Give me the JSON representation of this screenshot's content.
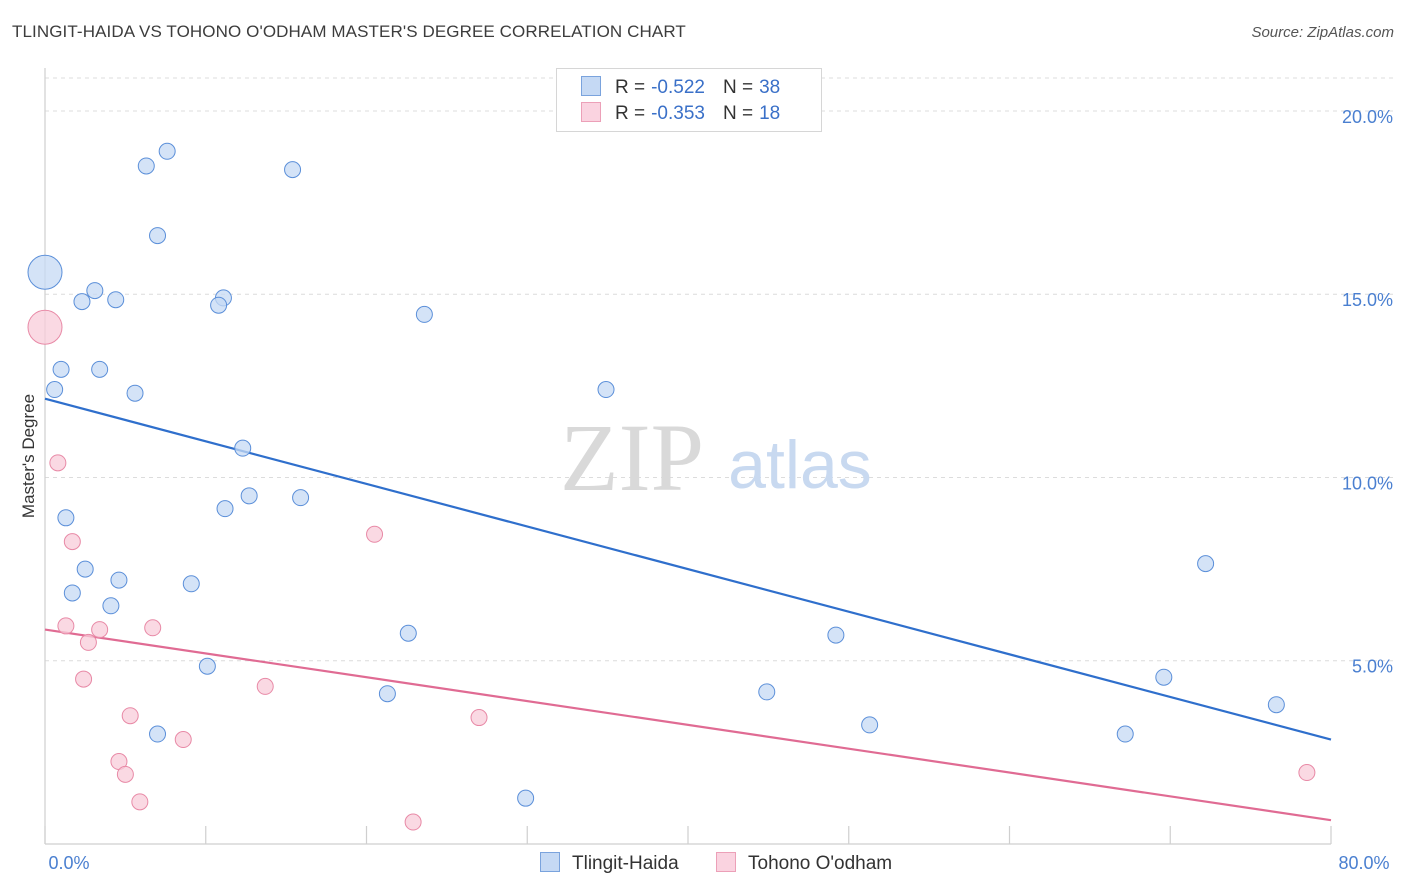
{
  "header": {
    "title": "TLINGIT-HAIDA VS TOHONO O'ODHAM MASTER'S DEGREE CORRELATION CHART",
    "source": "Source: ZipAtlas.com"
  },
  "legend": {
    "rows": [
      {
        "r_label": "R =",
        "r_value": "-0.522",
        "n_label": "N =",
        "n_value": "38",
        "color": "#a9c6ef"
      },
      {
        "r_label": "R =",
        "r_value": "-0.353",
        "n_label": "N =",
        "n_value": "18",
        "color": "#f5b8ca"
      }
    ]
  },
  "bottom_legend": [
    {
      "label": "Tlingit-Haida",
      "color": "#a9c6ef"
    },
    {
      "label": "Tohono O'odham",
      "color": "#f5b8ca"
    }
  ],
  "watermark": {
    "zip": "ZIP",
    "atlas": "atlas"
  },
  "chart_data": {
    "type": "scatter",
    "ylabel": "Master's Degree",
    "xlabel": "",
    "x_tick_labels": [
      "0.0%",
      "80.0%"
    ],
    "y_tick_labels": [
      "5.0%",
      "10.0%",
      "15.0%",
      "20.0%"
    ],
    "y_ticks": [
      5,
      10,
      15,
      20
    ],
    "xlim": [
      0,
      80
    ],
    "ylim": [
      0,
      20.9
    ],
    "grid": true,
    "series": [
      {
        "name": "Tlingit-Haida",
        "color": "#5b8fd9",
        "fill": "#c5d9f4",
        "trend": {
          "x": [
            0,
            80
          ],
          "y": [
            12.15,
            2.85
          ],
          "color": "#2f6fcc"
        },
        "points": [
          {
            "x": 0.0,
            "y": 15.6,
            "big": true
          },
          {
            "x": 6.3,
            "y": 18.5
          },
          {
            "x": 7.6,
            "y": 18.9
          },
          {
            "x": 15.4,
            "y": 18.4
          },
          {
            "x": 7.0,
            "y": 16.6
          },
          {
            "x": 3.1,
            "y": 15.1
          },
          {
            "x": 2.3,
            "y": 14.8
          },
          {
            "x": 4.4,
            "y": 14.85
          },
          {
            "x": 11.1,
            "y": 14.9
          },
          {
            "x": 10.8,
            "y": 14.7
          },
          {
            "x": 23.6,
            "y": 14.45
          },
          {
            "x": 1.0,
            "y": 12.95
          },
          {
            "x": 3.4,
            "y": 12.95
          },
          {
            "x": 0.6,
            "y": 12.4
          },
          {
            "x": 5.6,
            "y": 12.3
          },
          {
            "x": 34.9,
            "y": 12.4
          },
          {
            "x": 12.3,
            "y": 10.8
          },
          {
            "x": 12.7,
            "y": 9.5
          },
          {
            "x": 11.2,
            "y": 9.15
          },
          {
            "x": 15.9,
            "y": 9.45
          },
          {
            "x": 1.3,
            "y": 8.9
          },
          {
            "x": 2.5,
            "y": 7.5
          },
          {
            "x": 4.6,
            "y": 7.2
          },
          {
            "x": 9.1,
            "y": 7.1
          },
          {
            "x": 1.7,
            "y": 6.85
          },
          {
            "x": 4.1,
            "y": 6.5
          },
          {
            "x": 22.6,
            "y": 5.75
          },
          {
            "x": 49.2,
            "y": 5.7
          },
          {
            "x": 72.2,
            "y": 7.65
          },
          {
            "x": 10.1,
            "y": 4.85
          },
          {
            "x": 21.3,
            "y": 4.1
          },
          {
            "x": 44.9,
            "y": 4.15
          },
          {
            "x": 69.6,
            "y": 4.55
          },
          {
            "x": 76.6,
            "y": 3.8
          },
          {
            "x": 7.0,
            "y": 3.0
          },
          {
            "x": 51.3,
            "y": 3.25
          },
          {
            "x": 67.2,
            "y": 3.0
          },
          {
            "x": 29.9,
            "y": 1.25
          }
        ]
      },
      {
        "name": "Tohono O'odham",
        "color": "#e889a6",
        "fill": "#f8ccda",
        "trend": {
          "x": [
            0,
            80
          ],
          "y": [
            5.85,
            0.65
          ],
          "color": "#e06b93"
        },
        "points": [
          {
            "x": 0.0,
            "y": 14.1,
            "big": true
          },
          {
            "x": 0.8,
            "y": 10.4
          },
          {
            "x": 1.7,
            "y": 8.25
          },
          {
            "x": 20.5,
            "y": 8.45
          },
          {
            "x": 1.3,
            "y": 5.95
          },
          {
            "x": 2.7,
            "y": 5.5
          },
          {
            "x": 3.4,
            "y": 5.85
          },
          {
            "x": 6.7,
            "y": 5.9
          },
          {
            "x": 2.4,
            "y": 4.5
          },
          {
            "x": 13.7,
            "y": 4.3
          },
          {
            "x": 5.3,
            "y": 3.5
          },
          {
            "x": 27.0,
            "y": 3.45
          },
          {
            "x": 8.6,
            "y": 2.85
          },
          {
            "x": 4.6,
            "y": 2.25
          },
          {
            "x": 5.0,
            "y": 1.9
          },
          {
            "x": 5.9,
            "y": 1.15
          },
          {
            "x": 22.9,
            "y": 0.6
          },
          {
            "x": 78.5,
            "y": 1.95
          }
        ]
      }
    ]
  }
}
